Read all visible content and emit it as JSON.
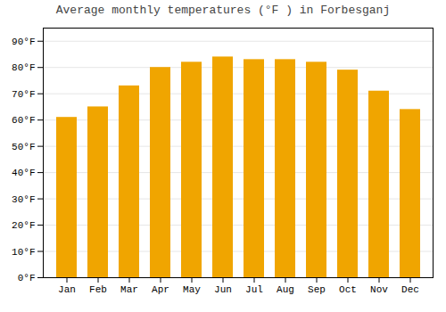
{
  "chart_data": {
    "type": "bar",
    "title": "Average monthly temperatures (°F ) in Forbesganj",
    "categories": [
      "Jan",
      "Feb",
      "Mar",
      "Apr",
      "May",
      "Jun",
      "Jul",
      "Aug",
      "Sep",
      "Oct",
      "Nov",
      "Dec"
    ],
    "values": [
      61,
      65,
      73,
      80,
      82,
      84,
      83,
      83,
      82,
      79,
      71,
      64
    ],
    "color": "#F0A500",
    "ylim": [
      0,
      95
    ],
    "yticks": [
      {
        "value": 0,
        "label": "0°F"
      },
      {
        "value": 10,
        "label": "10°F"
      },
      {
        "value": 20,
        "label": "20°F"
      },
      {
        "value": 30,
        "label": "30°F"
      },
      {
        "value": 40,
        "label": "40°F"
      },
      {
        "value": 50,
        "label": "50°F"
      },
      {
        "value": 60,
        "label": "60°F"
      },
      {
        "value": 70,
        "label": "70°F"
      },
      {
        "value": 80,
        "label": "80°F"
      },
      {
        "value": 90,
        "label": "90°F"
      }
    ],
    "grid": true
  }
}
